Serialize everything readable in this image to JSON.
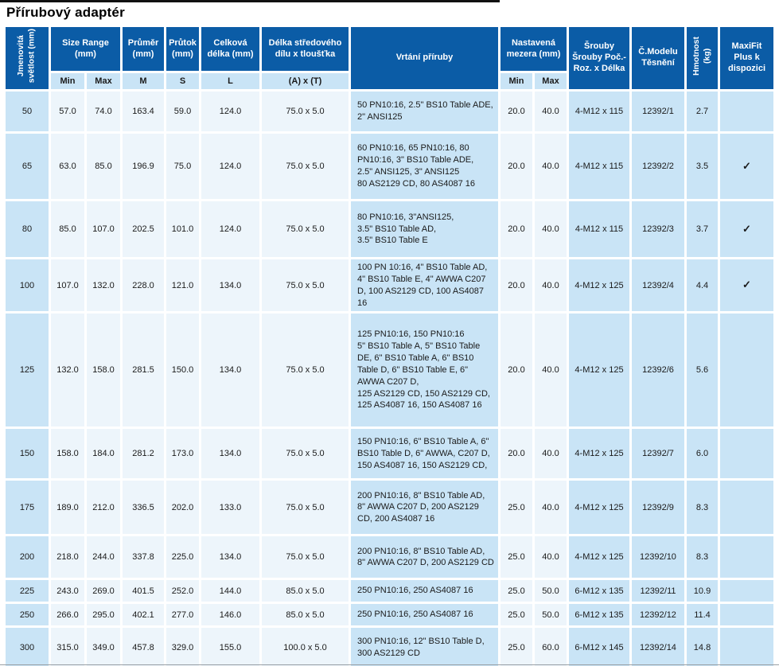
{
  "title": "Přírubový adaptér",
  "table": {
    "headers": {
      "nominal": "Jmenovitá\nsvětlost (mm)",
      "size_range": "Size Range\n(mm)",
      "min": "Min",
      "max": "Max",
      "diameter": "Průměr\n(mm)",
      "diameter_sub": "M",
      "flow": "Průtok\n(mm)",
      "flow_sub": "S",
      "total_length": "Celková\ndélka (mm)",
      "total_length_sub": "L",
      "center_length": "Délka středového\ndílu x tloušťka",
      "center_length_sub": "(A) x (T)",
      "drilling": "Vrtání příruby",
      "set_gap": "Nastavená\nmezera (mm)",
      "bolts": "Šrouby\nŠrouby Poč.-\nRoz. x Délka",
      "model": "Č.Modelu\nTěsnění",
      "weight": "Hmotnost\n(kg)",
      "maxifit": "MaxiFit\nPlus k\ndispozici"
    },
    "check_glyph": "✓",
    "rows": [
      {
        "dn": "50",
        "min": "57.0",
        "max": "74.0",
        "m": "163.4",
        "s": "59.0",
        "l": "124.0",
        "at": "75.0 x 5.0",
        "drilling": "50 PN10:16, 2.5\" BS10 Table ADE,\n2\" ANSI125",
        "gmin": "20.0",
        "gmax": "40.0",
        "bolts": "4-M12 x 115",
        "model": "12392/1",
        "weight": "2.7",
        "maxifit": ""
      },
      {
        "dn": "65",
        "min": "63.0",
        "max": "85.0",
        "m": "196.9",
        "s": "75.0",
        "l": "124.0",
        "at": "75.0 x 5.0",
        "drilling": "60 PN10:16, 65 PN10:16, 80\nPN10:16, 3\" BS10 Table ADE,\n2.5\" ANSI125, 3\" ANSI125\n80 AS2129 CD, 80 AS4087 16",
        "gmin": "20.0",
        "gmax": "40.0",
        "bolts": "4-M12 x 115",
        "model": "12392/2",
        "weight": "3.5",
        "maxifit": "✓"
      },
      {
        "dn": "80",
        "min": "85.0",
        "max": "107.0",
        "m": "202.5",
        "s": "101.0",
        "l": "124.0",
        "at": "75.0 x 5.0",
        "drilling": "80 PN10:16, 3\"ANSI125,\n3.5\" BS10 Table AD,\n3.5\" BS10 Table E",
        "gmin": "20.0",
        "gmax": "40.0",
        "bolts": "4-M12 x 115",
        "model": "12392/3",
        "weight": "3.7",
        "maxifit": "✓"
      },
      {
        "dn": "100",
        "min": "107.0",
        "max": "132.0",
        "m": "228.0",
        "s": "121.0",
        "l": "134.0",
        "at": "75.0 x 5.0",
        "drilling": "100 PN 10:16, 4\" BS10 Table AD,\n4\" BS10 Table E, 4\" AWWA C207\nD, 100 AS2129 CD, 100 AS4087 16",
        "gmin": "20.0",
        "gmax": "40.0",
        "bolts": "4-M12 x 125",
        "model": "12392/4",
        "weight": "4.4",
        "maxifit": "✓"
      },
      {
        "dn": "125",
        "min": "132.0",
        "max": "158.0",
        "m": "281.5",
        "s": "150.0",
        "l": "134.0",
        "at": "75.0 x 5.0",
        "drilling": "125 PN10:16, 150 PN10:16\n5\" BS10 Table A, 5\" BS10 Table\nDE, 6\" BS10 Table A, 6\" BS10\nTable D, 6\" BS10 Table E, 6\"\nAWWA C207 D,\n125 AS2129 CD, 150 AS2129 CD,\n125 AS4087 16, 150 AS4087 16",
        "gmin": "20.0",
        "gmax": "40.0",
        "bolts": "4-M12 x 125",
        "model": "12392/6",
        "weight": "5.6",
        "maxifit": ""
      },
      {
        "dn": "150",
        "min": "158.0",
        "max": "184.0",
        "m": "281.2",
        "s": "173.0",
        "l": "134.0",
        "at": "75.0 x 5.0",
        "drilling": "150 PN10:16, 6\" BS10 Table A, 6\"\nBS10 Table D, 6\" AWWA, C207 D,\n150 AS4087 16, 150 AS2129 CD,",
        "gmin": "20.0",
        "gmax": "40.0",
        "bolts": "4-M12 x 125",
        "model": "12392/7",
        "weight": "6.0",
        "maxifit": ""
      },
      {
        "dn": "175",
        "min": "189.0",
        "max": "212.0",
        "m": "336.5",
        "s": "202.0",
        "l": "133.0",
        "at": "75.0 x 5.0",
        "drilling": "200 PN10:16, 8\" BS10 Table AD,\n8\" AWWA C207 D, 200 AS2129\nCD, 200 AS4087 16",
        "gmin": "25.0",
        "gmax": "40.0",
        "bolts": "4-M12 x 125",
        "model": "12392/9",
        "weight": "8.3",
        "maxifit": ""
      },
      {
        "dn": "200",
        "min": "218.0",
        "max": "244.0",
        "m": "337.8",
        "s": "225.0",
        "l": "134.0",
        "at": "75.0 x 5.0",
        "drilling": "200 PN10:16, 8\" BS10 Table AD,\n8\" AWWA C207 D, 200 AS2129 CD",
        "gmin": "25.0",
        "gmax": "40.0",
        "bolts": "4-M12 x 125",
        "model": "12392/10",
        "weight": "8.3",
        "maxifit": ""
      },
      {
        "dn": "225",
        "min": "243.0",
        "max": "269.0",
        "m": "401.5",
        "s": "252.0",
        "l": "144.0",
        "at": "85.0 x 5.0",
        "drilling": "250 PN10:16, 250 AS4087 16",
        "gmin": "25.0",
        "gmax": "50.0",
        "bolts": "6-M12 x 135",
        "model": "12392/11",
        "weight": "10.9",
        "maxifit": ""
      },
      {
        "dn": "250",
        "min": "266.0",
        "max": "295.0",
        "m": "402.1",
        "s": "277.0",
        "l": "146.0",
        "at": "85.0 x 5.0",
        "drilling": "250 PN10:16, 250 AS4087 16",
        "gmin": "25.0",
        "gmax": "50.0",
        "bolts": "6-M12 x 135",
        "model": "12392/12",
        "weight": "11.4",
        "maxifit": ""
      },
      {
        "dn": "300",
        "min": "315.0",
        "max": "349.0",
        "m": "457.8",
        "s": "329.0",
        "l": "155.0",
        "at": "100.0 x 5.0",
        "drilling": "300 PN10:16, 12\" BS10 Table D,\n300 AS2129 CD",
        "gmin": "25.0",
        "gmax": "60.0",
        "bolts": "6-M12 x 145",
        "model": "12392/14",
        "weight": "14.8",
        "maxifit": ""
      }
    ]
  },
  "colors": {
    "header_blue": "#0b5ca6",
    "light_blue_cell": "#c9e4f6",
    "pale_cell": "#edf5fb"
  }
}
